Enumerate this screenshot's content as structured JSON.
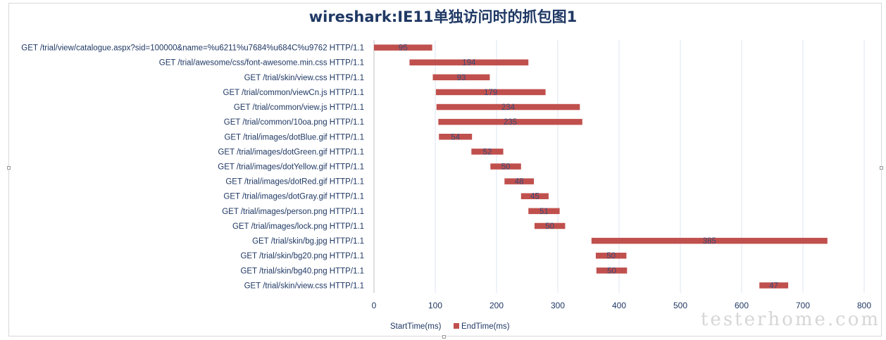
{
  "chart_data": {
    "type": "bar",
    "orientation": "horizontal",
    "stacked": true,
    "title": "wireshark:IE11单独访问时的抓包图1",
    "categories": [
      "GET /trial/view/catalogue.aspx?sid=100000&name=%u6211%u7684%u684C%u9762 HTTP/1.1",
      "GET /trial/awesome/css/font-awesome.min.css HTTP/1.1",
      "GET /trial/skin/view.css HTTP/1.1",
      "GET /trial/common/viewCn.js HTTP/1.1",
      "GET /trial/common/view.js HTTP/1.1",
      "GET /trial/common/10oa.png HTTP/1.1",
      "GET /trial/images/dotBlue.gif HTTP/1.1",
      "GET /trial/images/dotGreen.gif HTTP/1.1",
      "GET /trial/images/dotYellow.gif HTTP/1.1",
      "GET /trial/images/dotRed.gif HTTP/1.1",
      "GET /trial/images/dotGray.gif HTTP/1.1",
      "GET /trial/images/person.png HTTP/1.1",
      "GET /trial/images/lock.png HTTP/1.1",
      "GET /trial/skin/bg.jpg HTTP/1.1",
      "GET /trial/skin/bg20.png HTTP/1.1",
      "GET /trial/skin/bg40.png HTTP/1.1",
      "GET /trial/skin/view.css HTTP/1.1"
    ],
    "series": [
      {
        "name": "StartTime(ms)",
        "color": "none",
        "values": [
          0,
          58,
          96,
          101,
          102,
          105,
          106,
          159,
          190,
          213,
          240,
          252,
          262,
          355,
          362,
          363,
          629
        ]
      },
      {
        "name": "EndTime(ms)",
        "color": "#c0504d",
        "values": [
          95,
          194,
          93,
          179,
          234,
          235,
          54,
          52,
          50,
          48,
          45,
          51,
          50,
          385,
          50,
          50,
          47
        ]
      }
    ],
    "x_ticks": [
      0,
      100,
      200,
      300,
      400,
      500,
      600,
      700,
      800
    ],
    "xlim": [
      0,
      800
    ],
    "grid": {
      "vertical": true,
      "color": "#dce6f2"
    },
    "legend": {
      "position": "bottom",
      "entries": [
        "StartTime(ms)",
        "EndTime(ms)"
      ]
    }
  },
  "watermark": "testerhome.com"
}
